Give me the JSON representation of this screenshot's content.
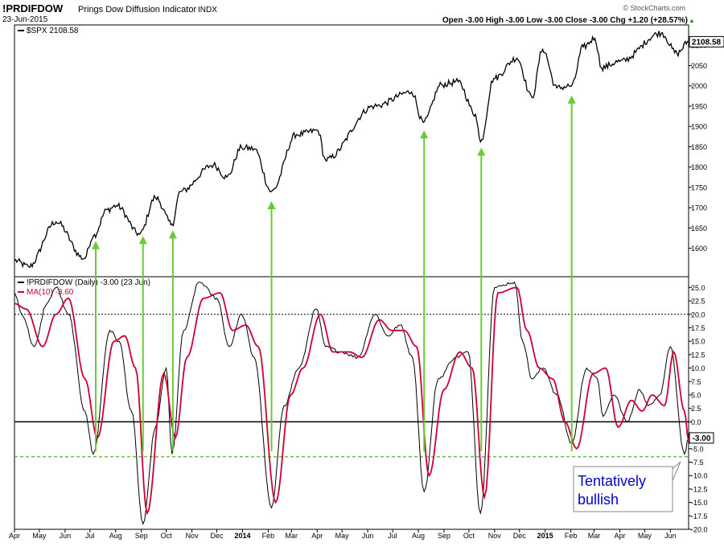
{
  "header": {
    "symbol": "!PRDIFDOW",
    "name": "Prings Dow Diffusion Indicator",
    "exchange": "INDX",
    "date": "23-Jun-2015",
    "quote": "Open -3.00  High -3.00  Low -3.00  Close -3.00  Chg +1.20 (+28.57%)",
    "logo": "© StockCharts.com",
    "up_arrow": "▲"
  },
  "colors": {
    "price_line": "#000000",
    "indicator_line": "#000000",
    "ma_line": "#cc0033",
    "arrow": "#66cc33",
    "support_line": "#44aa22",
    "callout_text": "#0000cc"
  },
  "chart_data": [
    {
      "type": "line",
      "panel": "price",
      "legend": "$SPX 2108.58",
      "last_value": "2108.58",
      "grid": false,
      "ylim": [
        1530,
        2150
      ],
      "y_ticks": [
        "1600",
        "1650",
        "1700",
        "1750",
        "1800",
        "1850",
        "1900",
        "1950",
        "2000",
        "2050",
        "2100"
      ],
      "x_range": [
        "2013-04-01",
        "2015-06-23"
      ],
      "series": [
        {
          "name": "$SPX",
          "x": [
            "2013-04-01",
            "2013-04-18",
            "2013-05-21",
            "2013-06-24",
            "2013-07-05",
            "2013-07-22",
            "2013-08-02",
            "2013-08-30",
            "2013-09-18",
            "2013-10-08",
            "2013-10-18",
            "2013-11-27",
            "2013-12-13",
            "2013-12-31",
            "2014-01-15",
            "2014-02-05",
            "2014-03-07",
            "2014-04-02",
            "2014-04-11",
            "2014-06-09",
            "2014-07-24",
            "2014-08-07",
            "2014-08-29",
            "2014-09-18",
            "2014-10-09",
            "2014-10-15",
            "2014-10-31",
            "2014-11-28",
            "2014-12-16",
            "2014-12-29",
            "2015-01-15",
            "2015-02-02",
            "2015-02-16",
            "2015-03-02",
            "2015-03-10",
            "2015-04-01",
            "2015-05-21",
            "2015-06-09",
            "2015-06-23"
          ],
          "y": [
            1570,
            1555,
            1665,
            1575,
            1630,
            1695,
            1705,
            1635,
            1725,
            1660,
            1740,
            1805,
            1775,
            1848,
            1845,
            1740,
            1880,
            1890,
            1818,
            1950,
            1985,
            1910,
            2003,
            2010,
            1930,
            1862,
            2018,
            2068,
            1972,
            2090,
            1995,
            2000,
            2096,
            2117,
            2045,
            2060,
            2130,
            2080,
            2108.58
          ]
        }
      ],
      "arrow_dates": [
        "2013-07-08",
        "2013-09-03",
        "2013-10-09",
        "2014-02-05",
        "2014-08-08",
        "2014-10-16",
        "2015-02-02"
      ]
    },
    {
      "type": "line",
      "panel": "indicator",
      "legend": [
        "!PRDIFDOW (Daily) -3.00 (23 Jun)",
        "MA(10) -3.60"
      ],
      "last_value": "-3.00",
      "grid": false,
      "ylim": [
        -20,
        27
      ],
      "y_ticks": [
        "25.0",
        "22.5",
        "20.0",
        "17.5",
        "15.0",
        "12.5",
        "10.0",
        "7.5",
        "5.0",
        "2.5",
        "0.0",
        "-2.5",
        "-5.0",
        "-7.5",
        "-10.0",
        "-12.5",
        "-15.0",
        "-17.5",
        "-20.0"
      ],
      "reference_lines": {
        "upper_dotted": 20,
        "zero": 0,
        "lower_dotted": -20,
        "support_dashed": -6.5
      },
      "callout": [
        "Tentatively",
        "bullish"
      ],
      "series": [
        {
          "name": "!PRDIFDOW (Daily)",
          "x": [
            "2013-04-01",
            "2013-04-10",
            "2013-04-25",
            "2013-05-10",
            "2013-05-21",
            "2013-06-05",
            "2013-06-25",
            "2013-07-05",
            "2013-07-25",
            "2013-08-05",
            "2013-08-20",
            "2013-09-03",
            "2013-09-18",
            "2013-10-01",
            "2013-10-08",
            "2013-10-22",
            "2013-11-10",
            "2013-12-01",
            "2013-12-16",
            "2013-12-31",
            "2014-01-15",
            "2014-02-05",
            "2014-02-20",
            "2014-03-10",
            "2014-03-31",
            "2014-04-11",
            "2014-04-30",
            "2014-05-20",
            "2014-06-10",
            "2014-06-25",
            "2014-07-10",
            "2014-07-25",
            "2014-08-08",
            "2014-08-25",
            "2014-09-15",
            "2014-09-30",
            "2014-10-15",
            "2014-11-01",
            "2014-11-25",
            "2014-12-05",
            "2014-12-16",
            "2014-12-30",
            "2015-01-15",
            "2015-02-02",
            "2015-02-20",
            "2015-03-05",
            "2015-03-12",
            "2015-03-25",
            "2015-04-10",
            "2015-04-25",
            "2015-05-05",
            "2015-05-19",
            "2015-06-01",
            "2015-06-18",
            "2015-06-23"
          ],
          "y": [
            24,
            20,
            14,
            22,
            25,
            20,
            2,
            -6,
            17,
            15,
            2,
            -19,
            -1,
            10,
            -6,
            17,
            26,
            23,
            14,
            20,
            12,
            -16,
            3,
            10,
            21,
            14,
            13,
            12,
            20,
            16,
            18,
            12,
            -13,
            8,
            12,
            13,
            -17,
            25,
            26,
            15,
            8,
            10,
            5,
            -4,
            10,
            8,
            1,
            5,
            0,
            6,
            3,
            5,
            14,
            -6,
            -3
          ]
        },
        {
          "name": "MA(10)",
          "x": [
            "2013-04-01",
            "2013-04-15",
            "2013-05-05",
            "2013-05-21",
            "2013-06-05",
            "2013-06-25",
            "2013-07-10",
            "2013-07-30",
            "2013-08-12",
            "2013-08-25",
            "2013-09-08",
            "2013-09-28",
            "2013-10-12",
            "2013-10-26",
            "2013-11-15",
            "2013-12-05",
            "2013-12-20",
            "2014-01-05",
            "2014-01-20",
            "2014-02-10",
            "2014-02-28",
            "2014-03-15",
            "2014-04-05",
            "2014-04-20",
            "2014-05-10",
            "2014-05-25",
            "2014-06-15",
            "2014-06-30",
            "2014-07-15",
            "2014-07-30",
            "2014-08-14",
            "2014-09-01",
            "2014-09-20",
            "2014-10-05",
            "2014-10-20",
            "2014-11-05",
            "2014-11-28",
            "2014-12-10",
            "2014-12-25",
            "2015-01-10",
            "2015-01-25",
            "2015-02-08",
            "2015-02-28",
            "2015-03-15",
            "2015-03-30",
            "2015-04-15",
            "2015-04-28",
            "2015-05-10",
            "2015-05-25",
            "2015-06-05",
            "2015-06-18",
            "2015-06-23"
          ],
          "y": [
            22,
            21,
            14,
            20,
            23,
            8,
            -3,
            15,
            16,
            10,
            -17,
            9,
            -3,
            12,
            23,
            24,
            17,
            18,
            14,
            -15,
            5,
            10,
            20,
            13,
            13,
            12,
            19,
            17,
            17,
            14,
            -10,
            6,
            13,
            10,
            -14,
            24,
            25,
            17,
            10,
            8,
            0,
            -5,
            9,
            10,
            -1,
            4,
            2,
            5,
            3,
            13,
            2,
            -3.6
          ]
        }
      ]
    }
  ],
  "x_axis": {
    "labels": [
      "Apr",
      "May",
      "Jun",
      "Jul",
      "Aug",
      "Sep",
      "Oct",
      "Nov",
      "Dec",
      "2014",
      "Feb",
      "Mar",
      "Apr",
      "May",
      "Jun",
      "Jul",
      "Aug",
      "Sep",
      "Oct",
      "Nov",
      "Dec",
      "2015",
      "Feb",
      "Mar",
      "Apr",
      "May",
      "Jun"
    ],
    "dates": [
      "2013-04-01",
      "2013-05-01",
      "2013-06-01",
      "2013-07-01",
      "2013-08-01",
      "2013-09-01",
      "2013-10-01",
      "2013-11-01",
      "2013-12-01",
      "2014-01-01",
      "2014-02-01",
      "2014-03-01",
      "2014-04-01",
      "2014-05-01",
      "2014-06-01",
      "2014-07-01",
      "2014-08-01",
      "2014-09-01",
      "2014-10-01",
      "2014-11-01",
      "2014-12-01",
      "2015-01-01",
      "2015-02-01",
      "2015-03-01",
      "2015-04-01",
      "2015-05-01",
      "2015-06-01"
    ]
  }
}
